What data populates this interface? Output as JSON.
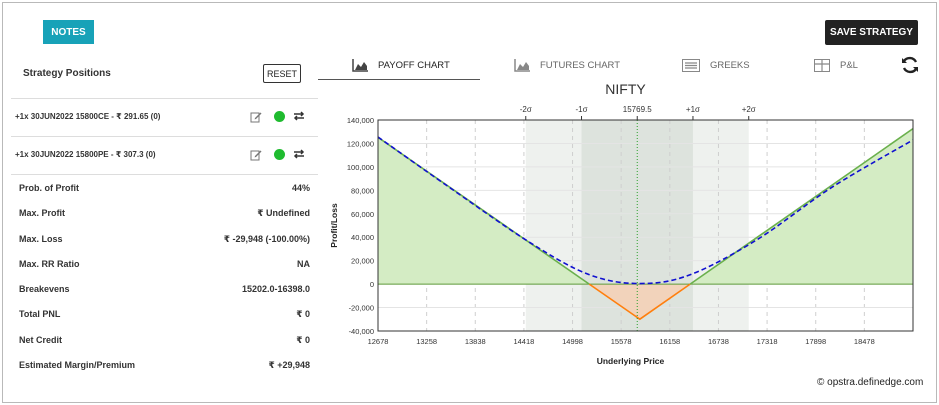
{
  "header": {
    "notes_label": "NOTES",
    "save_label": "SAVE STRATEGY"
  },
  "positions": {
    "title": "Strategy Positions",
    "reset_label": "RESET",
    "items": [
      {
        "text": "+1x  30JUN2022  15800CE  - ₹ 291.65  (0)"
      },
      {
        "text": "+1x  30JUN2022  15800PE  - ₹ 307.3  (0)"
      }
    ]
  },
  "stats": [
    {
      "label": "Prob. of Profit",
      "value": "44%"
    },
    {
      "label": "Max. Profit",
      "value": "₹ Undefined"
    },
    {
      "label": "Max. Loss",
      "value": "₹ -29,948 (-100.00%)"
    },
    {
      "label": "Max. RR Ratio",
      "value": "NA"
    },
    {
      "label": "Breakevens",
      "value": "15202.0-16398.0"
    },
    {
      "label": "Total PNL",
      "value": "₹ 0"
    },
    {
      "label": "Net Credit",
      "value": "₹ 0"
    },
    {
      "label": "Estimated Margin/Premium",
      "value": "₹ +29,948"
    }
  ],
  "tabs": [
    {
      "label": "PAYOFF CHART",
      "icon": "area-chart-icon",
      "active": true
    },
    {
      "label": "FUTURES CHART",
      "icon": "area-chart-icon",
      "active": false
    },
    {
      "label": "GREEKS",
      "icon": "list-icon",
      "active": false
    },
    {
      "label": "P&L",
      "icon": "table-icon",
      "active": false
    }
  ],
  "credit": "© opstra.definedge.com",
  "colors": {
    "accent": "#17a2b8",
    "profit_fill": "#d4ecc4",
    "loss_fill": "#f2d3bb",
    "profit_line": "#6ab04c",
    "loss_line": "#ff7f0e",
    "today_line": "#1010d0"
  },
  "chart_data": {
    "type": "line",
    "title": "NIFTY",
    "xlabel": "Underlying Price",
    "ylabel": "Profit/Loss",
    "xlim": [
      12678,
      19058
    ],
    "ylim": [
      -40000,
      140000
    ],
    "x_ticks": [
      12678,
      13258,
      13838,
      14418,
      14998,
      15578,
      16158,
      16738,
      17318,
      17898,
      18478
    ],
    "y_ticks": [
      -40000,
      -20000,
      0,
      20000,
      40000,
      60000,
      80000,
      100000,
      120000,
      140000
    ],
    "y_tick_labels": [
      "-40,000",
      "-20,000",
      "0",
      "20,000",
      "40,000",
      "60,000",
      "80,000",
      "100,000",
      "120,000",
      "140,000"
    ],
    "spot": 15769.5,
    "sigma_bands": [
      {
        "label": "-2σ",
        "x": 14440
      },
      {
        "label": "-1σ",
        "x": 15105
      },
      {
        "label": "15769.5",
        "x": 15769.5
      },
      {
        "label": "+1σ",
        "x": 16434
      },
      {
        "label": "+2σ",
        "x": 17099
      }
    ],
    "series": [
      {
        "kind": "expiry",
        "x": [
          12678,
          15800,
          19058
        ],
        "values": [
          125174,
          -29948,
          132634
        ]
      },
      {
        "kind": "today",
        "x": [
          12678,
          13500,
          14500,
          15200,
          15800,
          16400,
          17200,
          18100,
          19058
        ],
        "values": [
          125500,
          84000,
          35000,
          8000,
          500,
          8000,
          38000,
          83000,
          123000
        ]
      }
    ]
  }
}
